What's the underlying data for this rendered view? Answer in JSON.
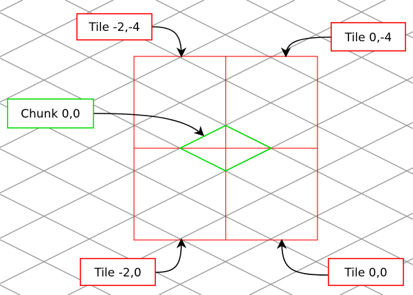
{
  "colors": {
    "grid": "#999999",
    "tile": "#ff0000",
    "chunk": "#00e000",
    "arrow": "#000000",
    "label_fill": "#ffffff"
  },
  "labels": {
    "tile_nw": "Tile -2,-4",
    "tile_ne": "Tile 0,-4",
    "chunk": "Chunk 0,0",
    "tile_sw": "Tile -2,0",
    "tile_se": "Tile 0,0"
  }
}
